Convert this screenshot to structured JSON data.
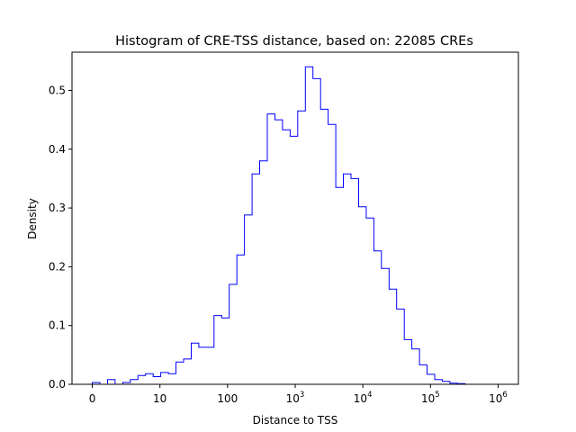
{
  "chart_data": {
    "type": "histogram-step",
    "title": "Histogram of CRE-TSS distance, based on: 22085 CREs",
    "xlabel": "Distance to TSS",
    "ylabel": "Density",
    "xscale": "symlog",
    "xlim": [
      -0.3,
      6.3
    ],
    "ylim": [
      0,
      0.565
    ],
    "grid": false,
    "line_color": "#0000ff",
    "x_ticks": [
      {
        "pos": 0,
        "label": "0"
      },
      {
        "pos": 1,
        "label": "10"
      },
      {
        "pos": 2,
        "label": "100"
      },
      {
        "pos": 3,
        "base": "10",
        "exp": "3"
      },
      {
        "pos": 4,
        "base": "10",
        "exp": "4"
      },
      {
        "pos": 5,
        "base": "10",
        "exp": "5"
      },
      {
        "pos": 6,
        "base": "10",
        "exp": "6"
      }
    ],
    "y_ticks": [
      {
        "value": 0.0,
        "label": "0.0"
      },
      {
        "value": 0.1,
        "label": "0.1"
      },
      {
        "value": 0.2,
        "label": "0.2"
      },
      {
        "value": 0.3,
        "label": "0.3"
      },
      {
        "value": 0.4,
        "label": "0.4"
      },
      {
        "value": 0.5,
        "label": "0.5"
      }
    ],
    "bin_width": 0.1125,
    "bin_start": 0.0,
    "densities": [
      0.003,
      0.0,
      0.008,
      0.0,
      0.003,
      0.008,
      0.015,
      0.018,
      0.013,
      0.02,
      0.018,
      0.038,
      0.043,
      0.07,
      0.063,
      0.063,
      0.117,
      0.113,
      0.17,
      0.22,
      0.288,
      0.358,
      0.38,
      0.46,
      0.45,
      0.433,
      0.422,
      0.465,
      0.54,
      0.52,
      0.468,
      0.442,
      0.335,
      0.358,
      0.35,
      0.302,
      0.283,
      0.227,
      0.197,
      0.162,
      0.128,
      0.076,
      0.06,
      0.033,
      0.017,
      0.008,
      0.005,
      0.002,
      0.001
    ]
  }
}
